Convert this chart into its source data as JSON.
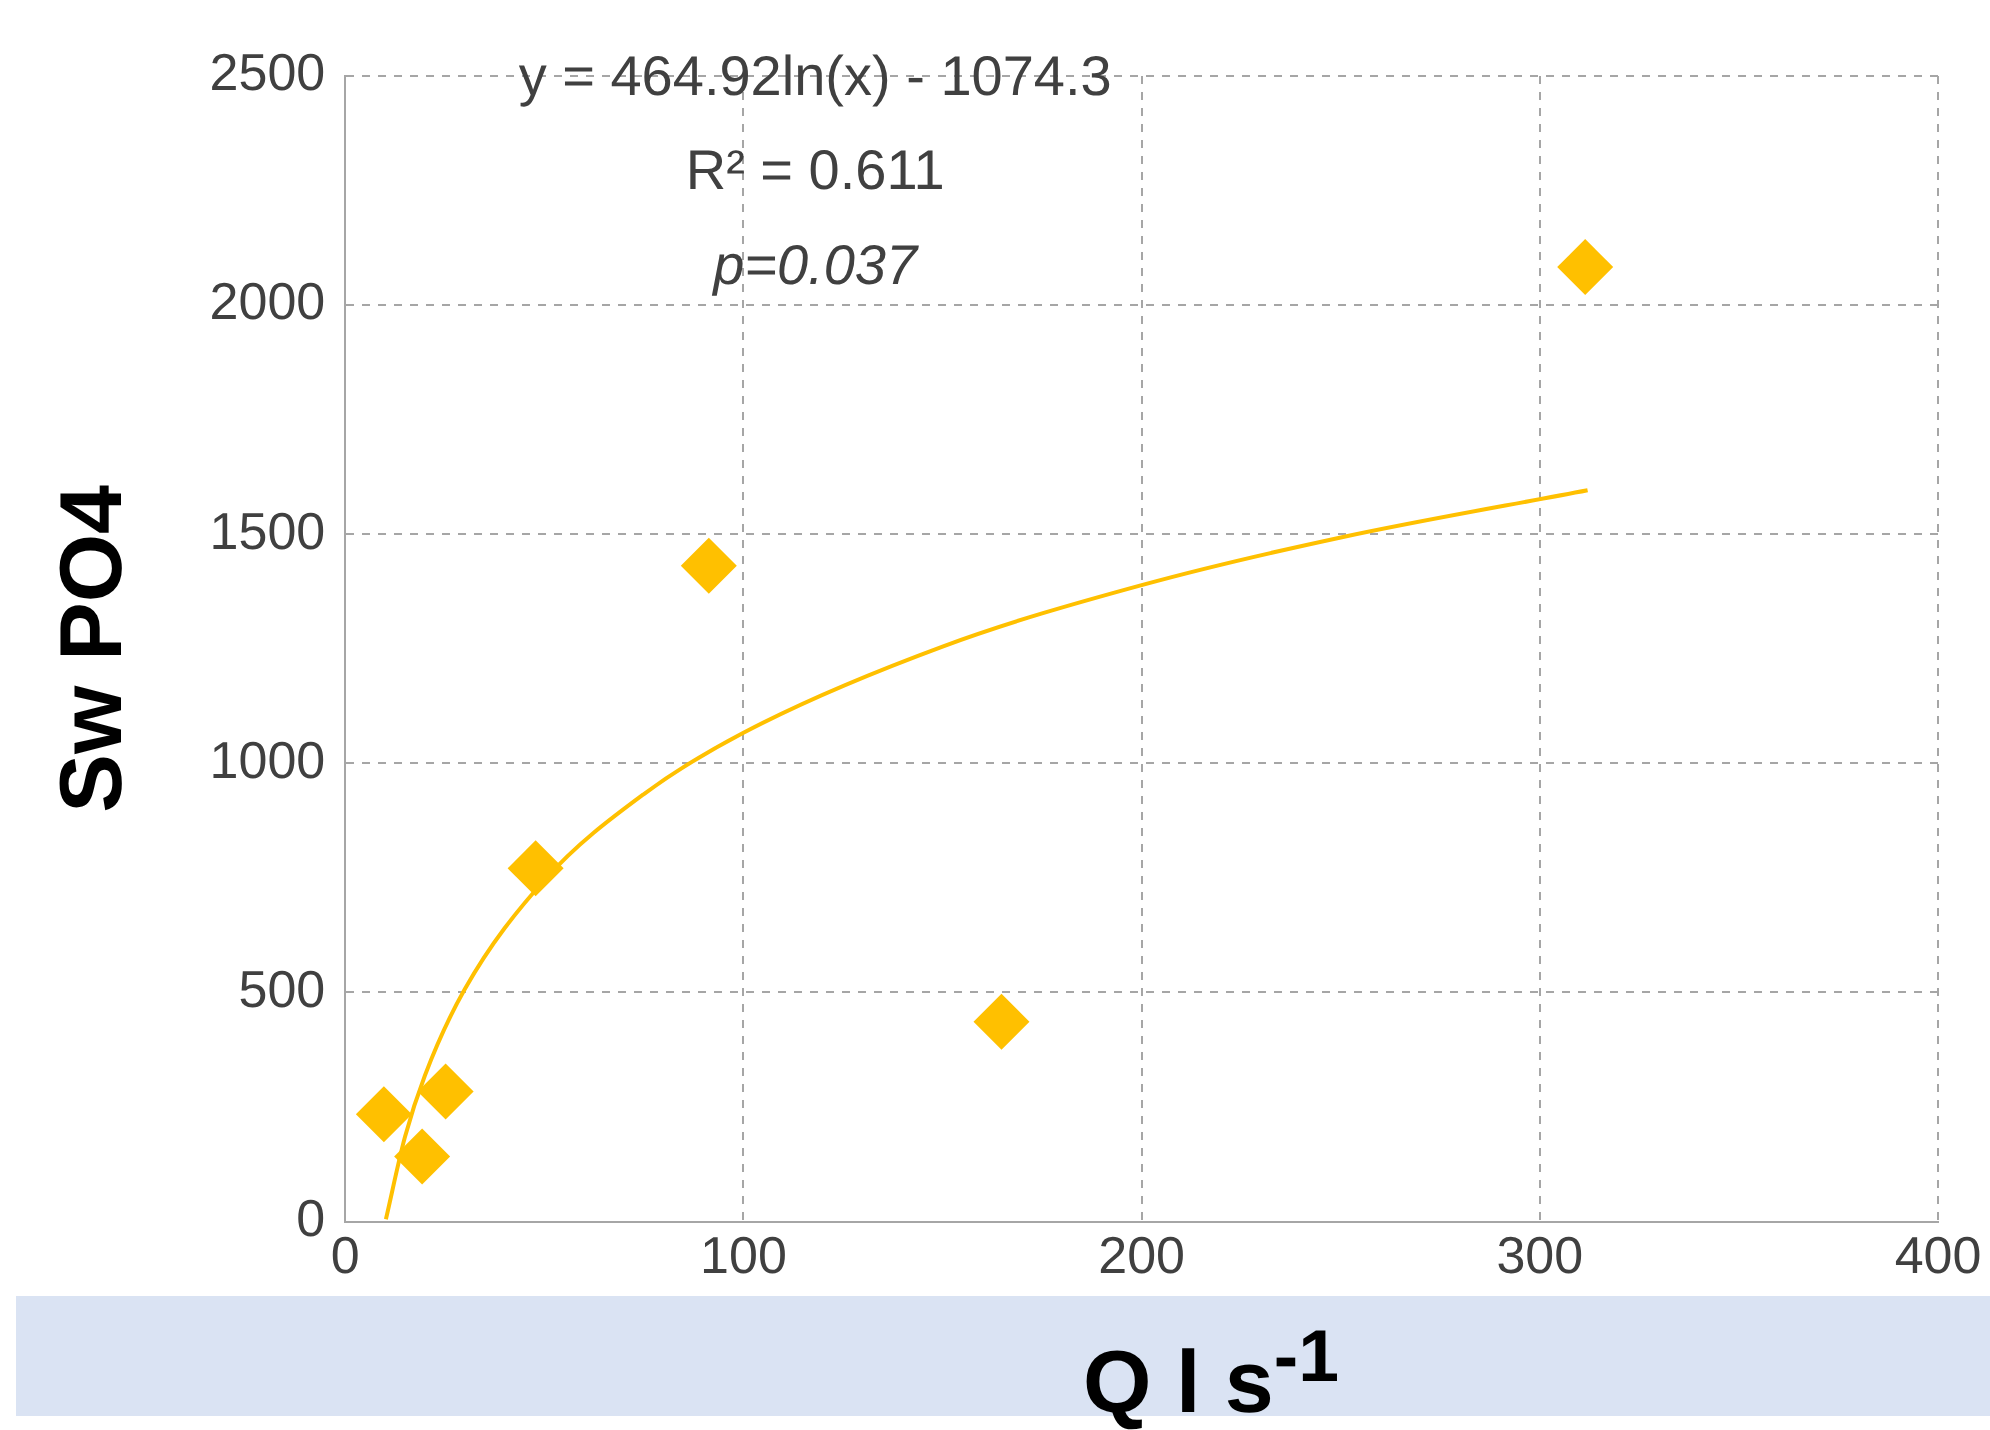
{
  "chart_data": {
    "type": "scatter",
    "xlabel": "Q l s$^{-1}$",
    "ylabel": "Sw PO4",
    "series": [
      {
        "type": "scatter",
        "color": "#ffc000",
        "marker": "diamond",
        "x": [
          9.7,
          19.3,
          25.2,
          47.8,
          91.3,
          164.8,
          311.4
        ],
        "values": [
          234,
          142,
          284,
          771,
          1431,
          436,
          2083
        ]
      },
      {
        "type": "line",
        "color": "#ffc000",
        "marker": "none",
        "x": [
          10.2,
          15,
          20,
          30,
          50,
          75,
          100,
          150,
          200,
          250,
          312
        ],
        "values": [
          5,
          185,
          319,
          507,
          745,
          933,
          1067,
          1255,
          1389,
          1493,
          1596
        ]
      }
    ],
    "xlim": [
      0,
      400
    ],
    "xticks": [
      0,
      100,
      200,
      300,
      400
    ],
    "ylim": [
      0,
      2500
    ],
    "yticks": [
      0,
      500,
      1000,
      1500,
      2000,
      2500
    ],
    "grid": true,
    "legend": false,
    "annotations": [
      "y = 464.92ln(x) - 1074.3",
      "R² = 0.611",
      "p=0.037"
    ]
  }
}
